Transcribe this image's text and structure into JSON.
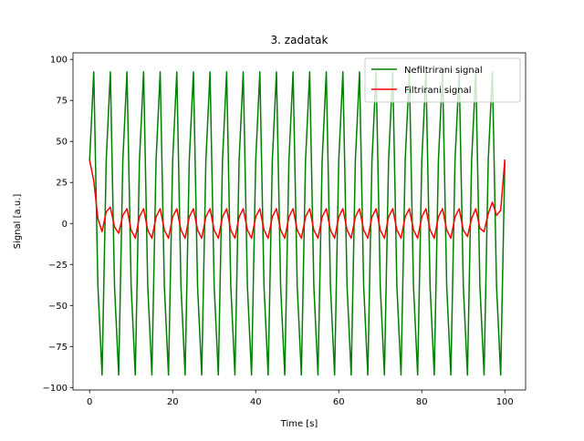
{
  "chart_data": {
    "type": "line",
    "title": "3. zadatak",
    "xlabel": "Time [s]",
    "ylabel": "Signal [a.u.]",
    "xlim": [
      -4,
      105
    ],
    "ylim": [
      -101.5,
      104
    ],
    "xticks": [
      0,
      20,
      40,
      60,
      80,
      100
    ],
    "yticks": [
      -100,
      -75,
      -50,
      -25,
      0,
      25,
      50,
      75,
      100
    ],
    "grid": false,
    "legend_position": "top-right",
    "series": [
      {
        "name": "Nefiltrirani signal",
        "color": "#008000",
        "x": [
          0,
          1,
          2,
          3,
          4,
          5,
          6,
          7,
          8,
          9,
          10,
          11,
          12,
          13,
          14,
          15,
          16,
          17,
          18,
          19,
          20,
          21,
          22,
          23,
          24,
          25,
          26,
          27,
          28,
          29,
          30,
          31,
          32,
          33,
          34,
          35,
          36,
          37,
          38,
          39,
          40,
          41,
          42,
          43,
          44,
          45,
          46,
          47,
          48,
          49,
          50,
          51,
          52,
          53,
          54,
          55,
          56,
          57,
          58,
          59,
          60,
          61,
          62,
          63,
          64,
          65,
          66,
          67,
          68,
          69,
          70,
          71,
          72,
          73,
          74,
          75,
          76,
          77,
          78,
          79,
          80,
          81,
          82,
          83,
          84,
          85,
          86,
          87,
          88,
          89,
          90,
          91,
          92,
          93,
          94,
          95,
          96,
          97,
          98,
          99,
          100
        ],
        "values": [
          38.3,
          92.4,
          -38.3,
          -92.4,
          38.3,
          92.4,
          -38.3,
          -92.4,
          38.3,
          92.4,
          -38.3,
          -92.4,
          38.3,
          92.4,
          -38.3,
          -92.4,
          38.3,
          92.4,
          -38.3,
          -92.4,
          38.3,
          92.4,
          -38.3,
          -92.4,
          38.3,
          92.4,
          -38.3,
          -92.4,
          38.3,
          92.4,
          -38.3,
          -92.4,
          38.3,
          92.4,
          -38.3,
          -92.4,
          38.3,
          92.4,
          -38.3,
          -92.4,
          38.3,
          92.4,
          -38.3,
          -92.4,
          38.3,
          92.4,
          -38.3,
          -92.4,
          38.3,
          92.4,
          -38.3,
          -92.4,
          38.3,
          92.4,
          -38.3,
          -92.4,
          38.3,
          92.4,
          -38.3,
          -92.4,
          38.3,
          92.4,
          -38.3,
          -92.4,
          38.3,
          92.4,
          -38.3,
          -92.4,
          38.3,
          92.4,
          -38.3,
          -92.4,
          38.3,
          92.4,
          -38.3,
          -92.4,
          38.3,
          92.4,
          -38.3,
          -92.4,
          38.3,
          92.4,
          -38.3,
          -92.4,
          38.3,
          92.4,
          -38.3,
          -92.4,
          38.3,
          92.4,
          -38.3,
          -92.4,
          38.3,
          92.4,
          -38.3,
          -92.4,
          38.3,
          92.4,
          -38.3,
          -92.4,
          38.3
        ]
      },
      {
        "name": "Filtrirani signal",
        "color": "#ff0000",
        "x": [
          0,
          1,
          2,
          3,
          4,
          5,
          6,
          7,
          8,
          9,
          10,
          11,
          12,
          13,
          14,
          15,
          16,
          17,
          18,
          19,
          20,
          21,
          22,
          23,
          24,
          25,
          26,
          27,
          28,
          29,
          30,
          31,
          32,
          33,
          34,
          35,
          36,
          37,
          38,
          39,
          40,
          41,
          42,
          43,
          44,
          45,
          46,
          47,
          48,
          49,
          50,
          51,
          52,
          53,
          54,
          55,
          56,
          57,
          58,
          59,
          60,
          61,
          62,
          63,
          64,
          65,
          66,
          67,
          68,
          69,
          70,
          71,
          72,
          73,
          74,
          75,
          76,
          77,
          78,
          79,
          80,
          81,
          82,
          83,
          84,
          85,
          86,
          87,
          88,
          89,
          90,
          91,
          92,
          93,
          94,
          95,
          96,
          97,
          98,
          99,
          100
        ],
        "values": [
          38.5,
          26,
          3,
          -5,
          7,
          10,
          -2,
          -6,
          5,
          9,
          -4,
          -9,
          4,
          9,
          -4,
          -9,
          4,
          9,
          -4,
          -9,
          4,
          9,
          -4,
          -9,
          4,
          9,
          -4,
          -9,
          4,
          9,
          -4,
          -9,
          4,
          9,
          -4,
          -9,
          4,
          9,
          -4,
          -9,
          4,
          9,
          -4,
          -9,
          4,
          9,
          -4,
          -9,
          4,
          9,
          -4,
          -9,
          4,
          9,
          -4,
          -9,
          4,
          9,
          -4,
          -9,
          4,
          9,
          -4,
          -9,
          4,
          9,
          -4,
          -9,
          4,
          9,
          -4,
          -9,
          4,
          9,
          -4,
          -9,
          4,
          9,
          -4,
          -9,
          4,
          9,
          -4,
          -9,
          4,
          9,
          -4,
          -9,
          4,
          9,
          -4,
          -8,
          3,
          9,
          -3,
          -5,
          6,
          13,
          5,
          8,
          39
        ]
      }
    ]
  }
}
